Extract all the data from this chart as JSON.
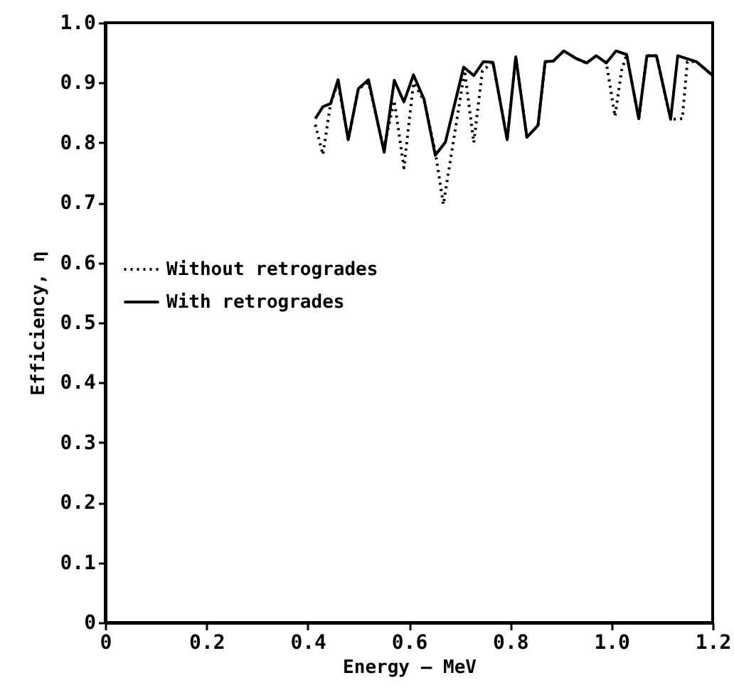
{
  "chart_data": {
    "type": "line",
    "xlabel": "Energy — MeV",
    "ylabel": "Efficiency, η",
    "xlim": [
      0,
      1.2
    ],
    "xticks": [
      0,
      {
        "value": 0.2,
        "label": "0.2"
      },
      {
        "value": 0.4,
        "label": "0.4"
      },
      {
        "value": 0.6,
        "label": "0.6"
      },
      {
        "value": 0.8,
        "label": "0.8"
      },
      {
        "value": 1.0,
        "label": "1.0"
      },
      {
        "value": 1.2,
        "label": "1.2"
      }
    ],
    "ylim": [
      0,
      1.0
    ],
    "yticks": [
      0,
      {
        "value": 0.1,
        "label": "0.1"
      },
      {
        "value": 0.2,
        "label": "0.2"
      },
      {
        "value": 0.3,
        "label": "0.3"
      },
      {
        "value": 0.4,
        "label": "0.4"
      },
      {
        "value": 0.5,
        "label": "0.5"
      },
      {
        "value": 0.6,
        "label": "0.6"
      },
      {
        "value": 0.7,
        "label": "0.7"
      },
      {
        "value": 0.8,
        "label": "0.8"
      },
      {
        "value": 0.9,
        "label": "0.9"
      },
      {
        "value": 1.0,
        "label": "1.0"
      }
    ],
    "grid": false,
    "legend": "left",
    "marker": "none",
    "series": [
      {
        "name": "Without retrogrades",
        "color": "#000000",
        "line_style": "dotted",
        "x": [
          0.415,
          0.43,
          0.445,
          0.46,
          0.48,
          0.5,
          0.52,
          0.55,
          0.571,
          0.59,
          0.609,
          0.63,
          0.652,
          0.668,
          0.71,
          0.728,
          0.745,
          0.766,
          0.794,
          0.811,
          0.833,
          0.855,
          0.869,
          0.885,
          0.906,
          0.929,
          0.951,
          0.97,
          0.99,
          1.007,
          1.02,
          1.03,
          1.054,
          1.07,
          1.089,
          1.117,
          1.14,
          1.15,
          1.168,
          1.2
        ],
        "values": [
          0.83,
          0.78,
          0.865,
          0.9,
          0.805,
          0.89,
          0.9,
          0.79,
          0.87,
          0.758,
          0.9,
          0.87,
          0.785,
          0.697,
          0.92,
          0.8,
          0.92,
          0.934,
          0.805,
          0.943,
          0.809,
          0.829,
          0.935,
          0.936,
          0.953,
          0.941,
          0.933,
          0.945,
          0.933,
          0.844,
          0.92,
          0.947,
          0.84,
          0.945,
          0.945,
          0.839,
          0.84,
          0.935,
          0.935,
          0.912
        ]
      },
      {
        "name": "With retrogrades",
        "color": "#000000",
        "line_style": "solid",
        "x": [
          0.415,
          0.43,
          0.445,
          0.46,
          0.48,
          0.5,
          0.52,
          0.551,
          0.571,
          0.59,
          0.609,
          0.63,
          0.652,
          0.672,
          0.708,
          0.728,
          0.747,
          0.766,
          0.794,
          0.811,
          0.833,
          0.855,
          0.869,
          0.885,
          0.906,
          0.929,
          0.951,
          0.97,
          0.99,
          1.009,
          1.03,
          1.054,
          1.07,
          1.089,
          1.117,
          1.131,
          1.168,
          1.2
        ],
        "values": [
          0.84,
          0.86,
          0.865,
          0.905,
          0.805,
          0.89,
          0.905,
          0.784,
          0.904,
          0.868,
          0.913,
          0.872,
          0.779,
          0.801,
          0.926,
          0.912,
          0.935,
          0.934,
          0.805,
          0.943,
          0.809,
          0.829,
          0.935,
          0.936,
          0.953,
          0.941,
          0.933,
          0.945,
          0.933,
          0.953,
          0.947,
          0.84,
          0.945,
          0.945,
          0.839,
          0.945,
          0.935,
          0.912
        ]
      }
    ]
  }
}
